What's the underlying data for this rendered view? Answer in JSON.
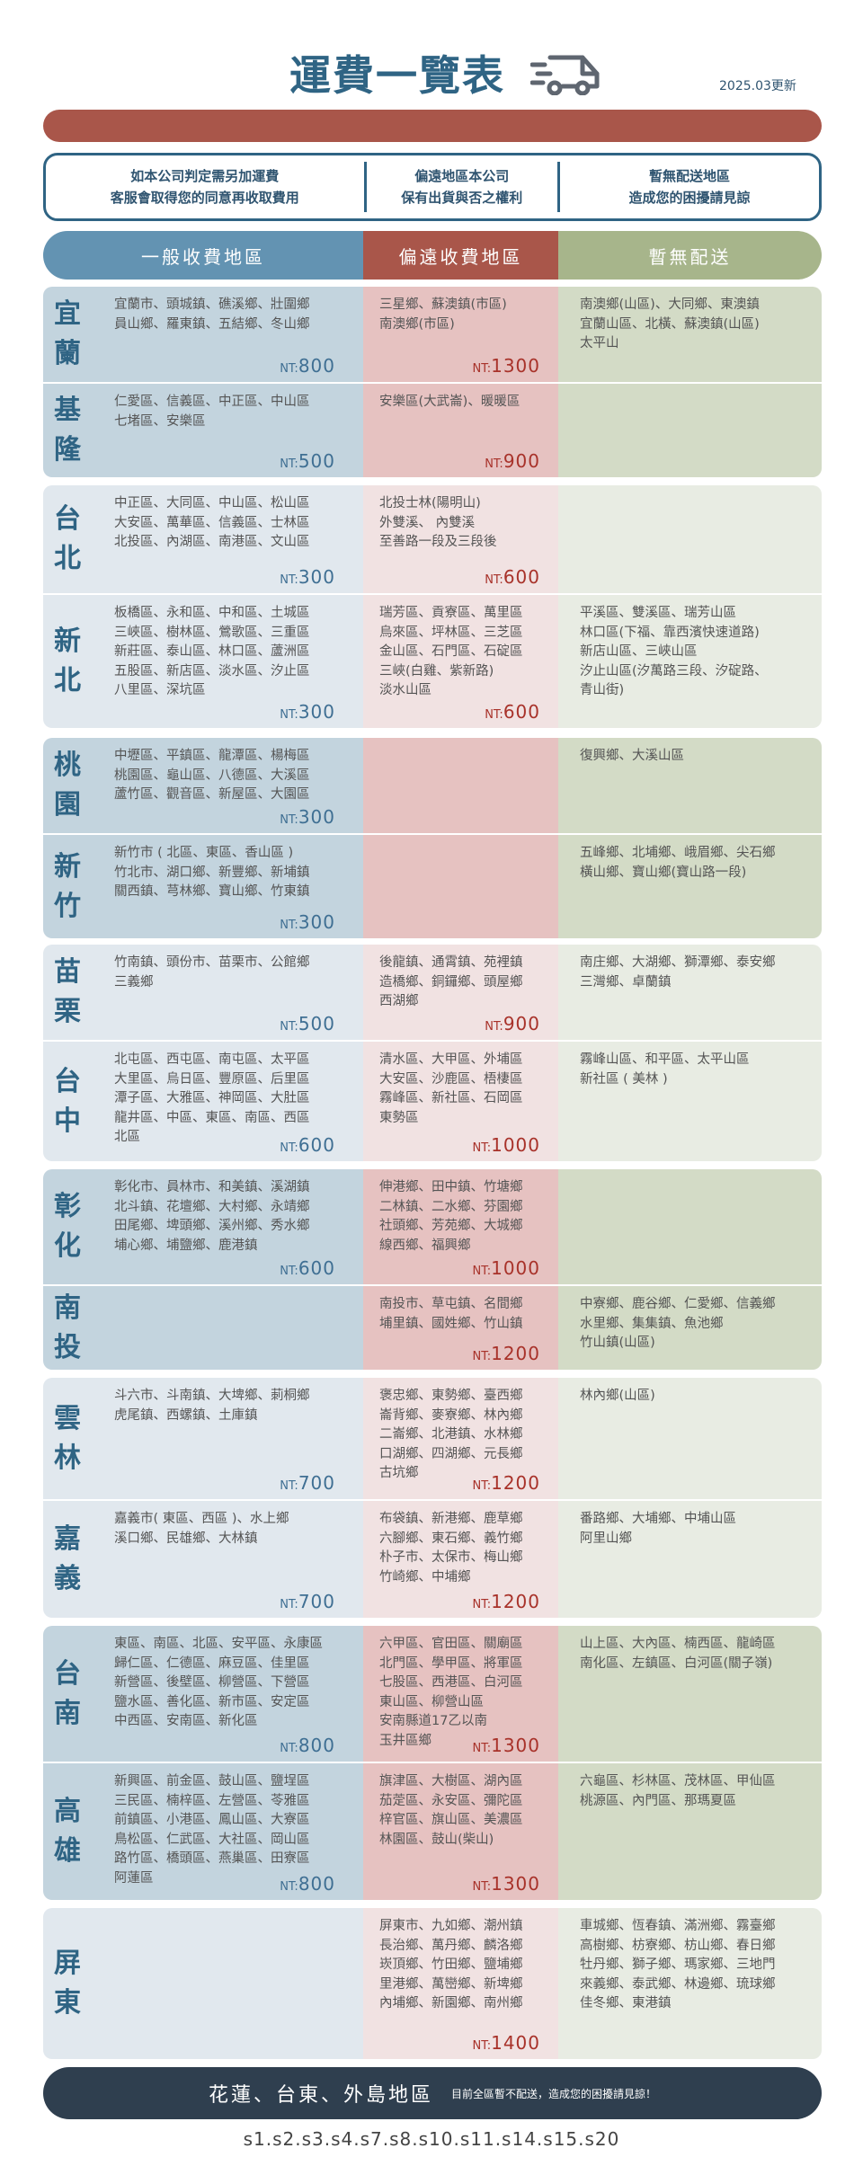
{
  "header": {
    "title": "運費一覽表",
    "truck_icon": "truck-icon",
    "updated": "2025.03更新"
  },
  "info": [
    [
      "如本公司判定需另加運費",
      "客服會取得您的同意再收取費用"
    ],
    [
      "偏遠地區本公司",
      "保有出貨與否之權利"
    ],
    [
      "暫無配送地區",
      "造成您的困擾請見諒"
    ]
  ],
  "columns": {
    "general": "一般收費地區",
    "remote": "偏遠收費地區",
    "none": "暫無配送"
  },
  "colors": {
    "general": "#6393b2",
    "remote": "#a9564a",
    "none": "#a7b58b",
    "price_general": "#3f6f93",
    "price_remote": "#a8322a",
    "footer": "#2f3f4f"
  },
  "price_prefix": "NT:",
  "groups": [
    {
      "shade": "dark",
      "rows": [
        {
          "region": "宜蘭",
          "general": [
            "宜蘭市、頭城鎮、礁溪鄉、壯圍鄉",
            "員山鄉、羅東鎮、五結鄉、冬山鄉"
          ],
          "general_price": "800",
          "remote": [
            "三星鄉、蘇澳鎮(市區)",
            "南澳鄉(市區)"
          ],
          "remote_price": "1300",
          "none": [
            "南澳鄉(山區)、大同鄉、東澳鎮",
            "宜蘭山區、北橫、蘇澳鎮(山區)",
            "太平山"
          ]
        },
        {
          "region": "基隆",
          "general": [
            "仁愛區、信義區、中正區、中山區",
            "七堵區、安樂區"
          ],
          "general_price": "500",
          "remote": [
            "安樂區(大武崙)、暖暖區"
          ],
          "remote_price": "900",
          "none": []
        }
      ]
    },
    {
      "shade": "light",
      "rows": [
        {
          "region": "台北",
          "general": [
            "中正區、大同區、中山區、松山區",
            "大安區、萬華區、信義區、士林區",
            "北投區、內湖區、南港區、文山區"
          ],
          "general_price": "300",
          "remote": [
            "北投士林(陽明山)",
            "外雙溪、 內雙溪",
            "至善路一段及三段後"
          ],
          "remote_price": "600",
          "none": []
        },
        {
          "region": "新北",
          "general": [
            "板橋區、永和區、中和區、土城區",
            "三峽區、樹林區、鶯歌區、三重區",
            "新莊區、泰山區、林口區、蘆洲區",
            "五股區、新店區、淡水區、汐止區",
            "八里區、深坑區"
          ],
          "general_price": "300",
          "remote": [
            "瑞芳區、貢寮區、萬里區",
            "烏來區、坪林區、三芝區",
            "金山區、石門區、石碇區",
            "三峽(白雞、紫新路)",
            "淡水山區"
          ],
          "remote_price": "600",
          "none": [
            "平溪區、雙溪區、瑞芳山區",
            "林口區(下福、靠西濱快速道路)",
            "新店山區、三峽山區",
            "汐止山區(汐萬路三段、汐碇路、",
            "青山街)"
          ]
        }
      ]
    },
    {
      "shade": "dark",
      "rows": [
        {
          "region": "桃園",
          "general": [
            "中壢區、平鎮區、龍潭區、楊梅區",
            "桃園區、龜山區、八德區、大溪區",
            "蘆竹區、觀音區、新屋區、大園區"
          ],
          "general_price": "300",
          "remote": [],
          "remote_price": "",
          "none": [
            "復興鄉、大溪山區"
          ]
        },
        {
          "region": "新竹",
          "general": [
            "新竹市 ( 北區、東區、香山區 )",
            "竹北市、湖口鄉、新豐鄉、新埔鎮",
            "關西鎮、芎林鄉、寶山鄉、竹東鎮"
          ],
          "general_price": "300",
          "remote": [],
          "remote_price": "",
          "none": [
            "五峰鄉、北埔鄉、峨眉鄉、尖石鄉",
            "橫山鄉、寶山鄉(寶山路一段)"
          ]
        }
      ]
    },
    {
      "shade": "light",
      "rows": [
        {
          "region": "苗栗",
          "general": [
            "竹南鎮、頭份市、苗栗市、公館鄉",
            "三義鄉"
          ],
          "general_price": "500",
          "remote": [
            "後龍鎮、通霄鎮、苑裡鎮",
            "造橋鄉、銅鑼鄉、頭屋鄉",
            "西湖鄉"
          ],
          "remote_price": "900",
          "none": [
            "南庄鄉、大湖鄉、獅潭鄉、泰安鄉",
            "三灣鄉、卓蘭鎮"
          ]
        },
        {
          "region": "台中",
          "general": [
            "北屯區、西屯區、南屯區、太平區",
            "大里區、烏日區、豐原區、后里區",
            "潭子區、大雅區、神岡區、大肚區",
            "龍井區、中區、東區、南區、西區",
            "北區"
          ],
          "general_price": "600",
          "remote": [
            "清水區、大甲區、外埔區",
            "大安區、沙鹿區、梧棲區",
            "霧峰區、新社區、石岡區",
            "東勢區"
          ],
          "remote_price": "1000",
          "none": [
            "霧峰山區、和平區、太平山區",
            "新社區 ( 美林 )"
          ]
        }
      ]
    },
    {
      "shade": "dark",
      "rows": [
        {
          "region": "彰化",
          "general": [
            "彰化市、員林市、和美鎮、溪湖鎮",
            "北斗鎮、花壇鄉、大村鄉、永靖鄉",
            "田尾鄉、埤頭鄉、溪州鄉、秀水鄉",
            "埔心鄉、埔鹽鄉、鹿港鎮"
          ],
          "general_price": "600",
          "remote": [
            "伸港鄉、田中鎮、竹塘鄉",
            "二林鎮、二水鄉、芬園鄉",
            "社頭鄉、芳苑鄉、大城鄉",
            "線西鄉、福興鄉"
          ],
          "remote_price": "1000",
          "none": []
        },
        {
          "region": "南投",
          "general": [],
          "general_price": "",
          "remote": [
            "南投市、草屯鎮、名間鄉",
            "埔里鎮、國姓鄉、竹山鎮"
          ],
          "remote_price": "1200",
          "none": [
            "中寮鄉、鹿谷鄉、仁愛鄉、信義鄉",
            "水里鄉、集集鎮、魚池鄉",
            "竹山鎮(山區)"
          ]
        }
      ]
    },
    {
      "shade": "light",
      "rows": [
        {
          "region": "雲林",
          "general": [
            "斗六市、斗南鎮、大埤鄉、莿桐鄉",
            "虎尾鎮、西螺鎮、土庫鎮"
          ],
          "general_price": "700",
          "remote": [
            "褒忠鄉、東勢鄉、臺西鄉",
            "崙背鄉、麥寮鄉、林內鄉",
            "二崙鄉、北港鎮、水林鄉",
            "口湖鄉、四湖鄉、元長鄉",
            "古坑鄉"
          ],
          "remote_price": "1200",
          "none": [
            "林內鄉(山區)"
          ]
        },
        {
          "region": "嘉義",
          "general": [
            "嘉義市( 東區、西區 )、水上鄉",
            "溪口鄉、民雄鄉、大林鎮"
          ],
          "general_price": "700",
          "remote": [
            "布袋鎮、新港鄉、鹿草鄉",
            "六腳鄉、東石鄉、義竹鄉",
            "朴子市、太保市、梅山鄉",
            "竹崎鄉、中埔鄉"
          ],
          "remote_price": "1200",
          "none": [
            "番路鄉、大埔鄉、中埔山區",
            "阿里山鄉"
          ]
        }
      ]
    },
    {
      "shade": "dark",
      "rows": [
        {
          "region": "台南",
          "general": [
            "東區、南區、北區、安平區、永康區",
            "歸仁區、仁德區、麻豆區、佳里區",
            "新營區、後壁區、柳營區、下營區",
            "鹽水區、善化區、新市區、安定區",
            "中西區、安南區、新化區"
          ],
          "general_price": "800",
          "remote": [
            "六甲區、官田區、關廟區",
            "北門區、學甲區、將軍區",
            "七股區、西港區、白河區",
            "東山區、柳營山區",
            "安南縣道17乙以南",
            "玉井區鄉"
          ],
          "remote_price": "1300",
          "none": [
            "山上區、大內區、楠西區、龍崎區",
            "南化區、左鎮區、白河區(關子嶺)"
          ]
        },
        {
          "region": "高雄",
          "general": [
            "新興區、前金區、鼓山區、鹽埕區",
            "三民區、楠梓區、左營區、苓雅區",
            "前鎮區、小港區、鳳山區、大寮區",
            "鳥松區、仁武區、大社區、岡山區",
            "路竹區、橋頭區、燕巢區、田寮區",
            "阿蓮區"
          ],
          "general_price": "800",
          "remote": [
            "旗津區、大樹區、湖內區",
            "茄萣區、永安區、彌陀區",
            "梓官區、旗山區、美濃區",
            "林園區、鼓山(柴山)"
          ],
          "remote_price": "1300",
          "none": [
            "六龜區、杉林區、茂林區、甲仙區",
            "桃源區、內門區、那瑪夏區"
          ]
        }
      ]
    },
    {
      "shade": "light",
      "rows": [
        {
          "region": "屏東",
          "general": [],
          "general_price": "",
          "remote": [
            "屏東市、九如鄉、潮州鎮",
            "長治鄉、萬丹鄉、麟洛鄉",
            "崁頂鄉、竹田鄉、鹽埔鄉",
            "里港鄉、萬巒鄉、新埤鄉",
            "內埔鄉、新園鄉、南州鄉"
          ],
          "remote_price": "1400",
          "none": [
            "車城鄉、恆春鎮、滿洲鄉、霧臺鄉",
            "高樹鄉、枋寮鄉、枋山鄉、春日鄉",
            "牡丹鄉、獅子鄉、瑪家鄉、三地門",
            "來義鄉、泰武鄉、林邊鄉、琉球鄉",
            "佳冬鄉、東港鎮"
          ]
        }
      ]
    }
  ],
  "footer": {
    "main": "花蓮、台東、外島地區",
    "sub": "目前全區暫不配送，造成您的困擾請見諒！"
  },
  "codes": "s1.s2.s3.s4.s7.s8.s10.s11.s14.s15.s20"
}
